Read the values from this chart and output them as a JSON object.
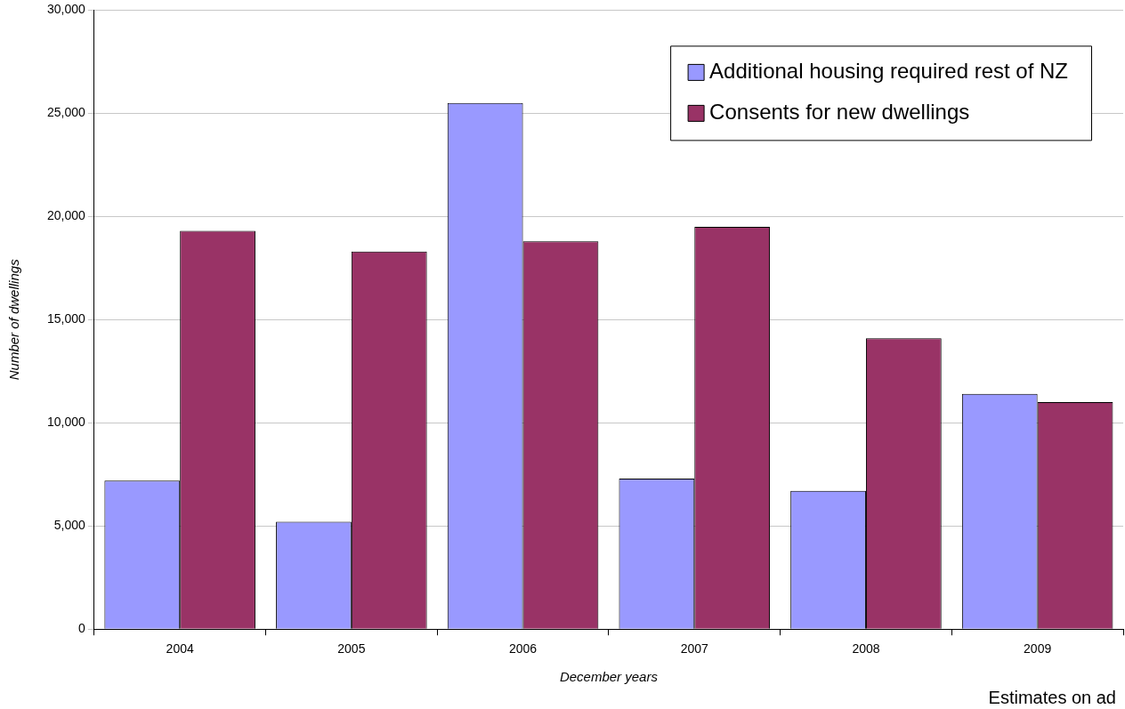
{
  "chart_data": {
    "type": "bar",
    "xlabel": "December years",
    "ylabel": "Number of dwellings",
    "categories": [
      "2004",
      "2005",
      "2006",
      "2007",
      "2008",
      "2009"
    ],
    "series": [
      {
        "name": "Additional housing required rest of NZ",
        "color": "#9999ff",
        "values": [
          7200,
          5200,
          25500,
          7300,
          6700,
          11400
        ]
      },
      {
        "name": "Consents for new dwellings",
        "color": "#993366",
        "values": [
          19300,
          18300,
          18800,
          19500,
          14100,
          11000
        ]
      }
    ],
    "ylim": [
      0,
      30000
    ],
    "yticks": [
      {
        "value": 0,
        "label": "0"
      },
      {
        "value": 5000,
        "label": "5,000"
      },
      {
        "value": 10000,
        "label": "10,000"
      },
      {
        "value": 15000,
        "label": "15,000"
      },
      {
        "value": 20000,
        "label": "20,000"
      },
      {
        "value": 25000,
        "label": "25,000"
      },
      {
        "value": 30000,
        "label": "30,000"
      }
    ],
    "grid": "y",
    "legend": "top right",
    "annotations": [
      "Estimates on ad"
    ]
  }
}
